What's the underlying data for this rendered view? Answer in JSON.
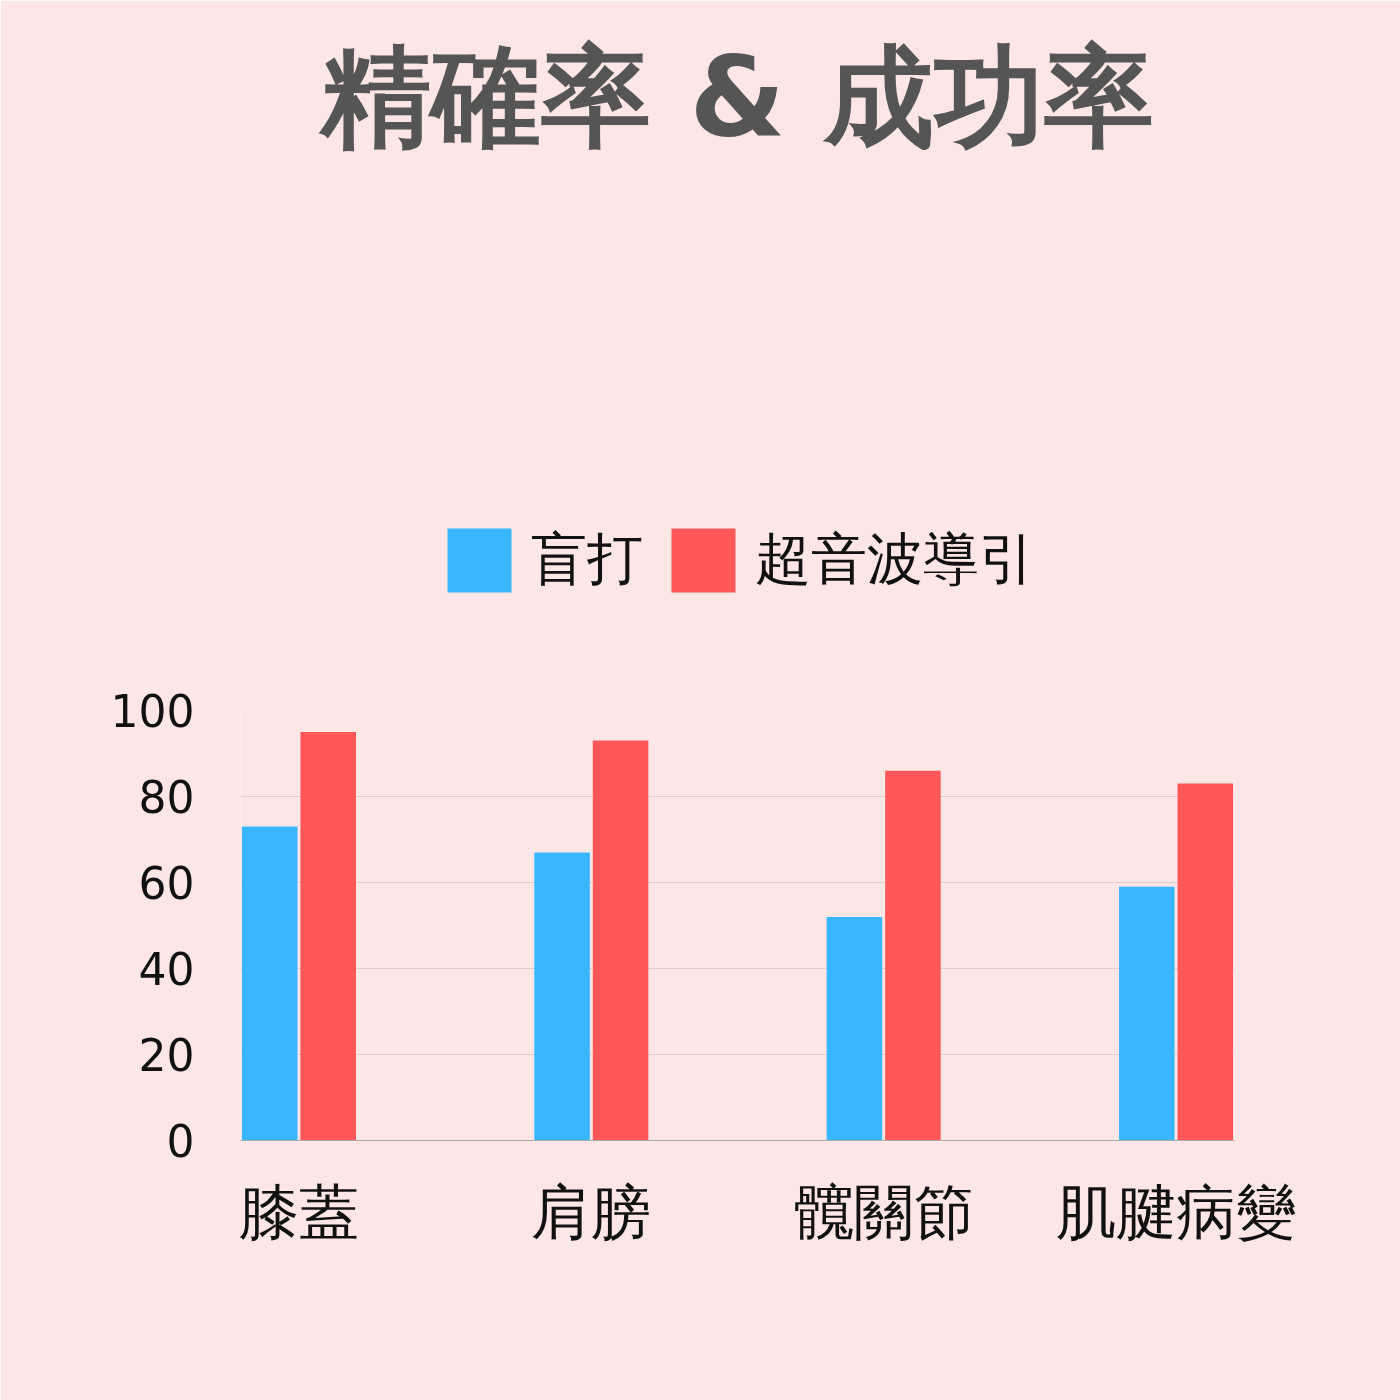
{
  "chart_data": {
    "type": "bar",
    "title": "精確率 & 成功率",
    "categories": [
      "膝蓋",
      "肩膀",
      "髖關節",
      "肌腱病變"
    ],
    "series": [
      {
        "name": "盲打",
        "color": "#38b6ff",
        "values": [
          73,
          67,
          52,
          59
        ]
      },
      {
        "name": "超音波導引",
        "color": "#ff5757",
        "values": [
          95,
          93,
          86,
          83
        ]
      }
    ],
    "ylim": [
      0,
      100
    ],
    "yticks": [
      0,
      20,
      40,
      60,
      80,
      100
    ],
    "grid": "y",
    "legend": "top"
  }
}
